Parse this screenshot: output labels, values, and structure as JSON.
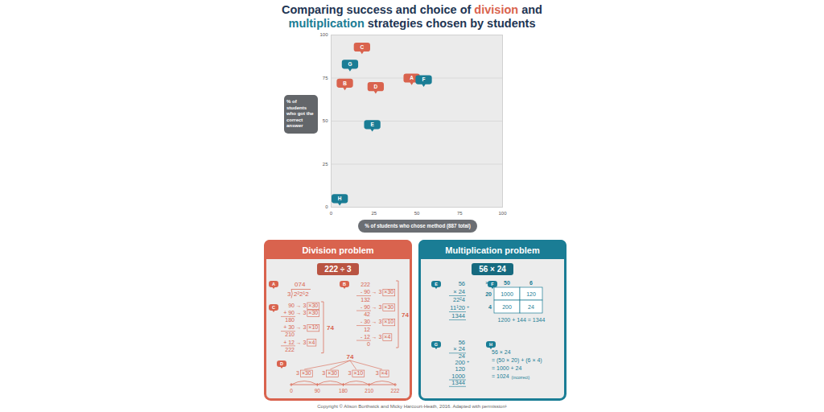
{
  "chart_data": {
    "type": "scatter",
    "title": "Comparing success and choice of division and multiplication strategies chosen by students",
    "xlabel": "% of students who chose method (887 total)",
    "ylabel": "% of students who got the correct answer",
    "xlim": [
      0,
      100
    ],
    "ylim": [
      0,
      100
    ],
    "xticks": [
      0,
      25,
      50,
      75,
      100
    ],
    "yticks": [
      0,
      25,
      50,
      75,
      100
    ],
    "grid": "y",
    "series": [
      {
        "name": "Division problem",
        "color": "#d9634e",
        "labels": [
          "A",
          "B",
          "C",
          "D"
        ],
        "x": [
          47,
          8,
          18,
          26
        ],
        "values": [
          75,
          72,
          93,
          70
        ]
      },
      {
        "name": "Multiplication problem",
        "color": "#1a7d95",
        "labels": [
          "E",
          "F",
          "G",
          "H"
        ],
        "x": [
          24,
          54,
          11,
          5
        ],
        "values": [
          48,
          74,
          83,
          5
        ]
      }
    ]
  },
  "panels": [
    {
      "problem": "222 ÷ 3",
      "methods": [
        {
          "label": "A",
          "quotient": "074",
          "divisor": "3",
          "dividend": "2²2¹2"
        },
        {
          "label": "B",
          "rows": [
            [
              "222"
            ],
            [
              "- 90",
              "→ 3",
              "×30"
            ],
            [
              "132"
            ],
            [
              "- 90",
              "→ 3",
              "×30"
            ],
            [
              "42"
            ],
            [
              "- 30",
              "→ 3",
              "×10"
            ],
            [
              "12"
            ],
            [
              "- 12",
              "→ 3",
              "×4"
            ],
            [
              "0"
            ]
          ],
          "result": "74"
        },
        {
          "label": "C",
          "rows": [
            [
              "90",
              "→ 3",
              "×30"
            ],
            [
              "+ 90",
              "→ 3",
              "×30"
            ],
            [
              "180"
            ],
            [
              "+ 30",
              "→ 3",
              "×10"
            ],
            [
              "210"
            ],
            [
              "+ 12",
              "→ 3",
              "×4"
            ],
            [
              "222"
            ]
          ],
          "result": "74"
        },
        {
          "label": "D",
          "result": "74",
          "chunks": [
            [
              "3",
              "×30"
            ],
            [
              "3",
              "×30"
            ],
            [
              "3",
              "×10"
            ],
            [
              "3",
              "×4"
            ]
          ],
          "number_line": [
            "0",
            "90",
            "180",
            "210",
            "222"
          ]
        }
      ]
    },
    {
      "problem": "56 × 24",
      "methods": [
        {
          "label": "E",
          "rows": [
            "56",
            "× 24",
            "22²4",
            "11¹20 +",
            "1344"
          ]
        },
        {
          "label": "F",
          "sign": "×",
          "columns": [
            "50",
            "6"
          ],
          "rows": [
            "20",
            "4"
          ],
          "cells": [
            [
              "1000",
              "120"
            ],
            [
              "200",
              "24"
            ]
          ],
          "sum": "1200 + 144 = 1344"
        },
        {
          "label": "G",
          "rows": [
            "56",
            "× 24",
            "24",
            "200 +",
            "120",
            "1000",
            "1344"
          ]
        },
        {
          "label": "H",
          "lines": [
            "56 × 24",
            "= (50 × 20) + (6 × 4)",
            "= 1000 + 24",
            "= 1024"
          ],
          "note": "(incorrect)"
        }
      ]
    }
  ],
  "footer": "Copyright © Alison Borthwick and Micky Harcourt-Heath, 2016. Adapted with permission¹"
}
